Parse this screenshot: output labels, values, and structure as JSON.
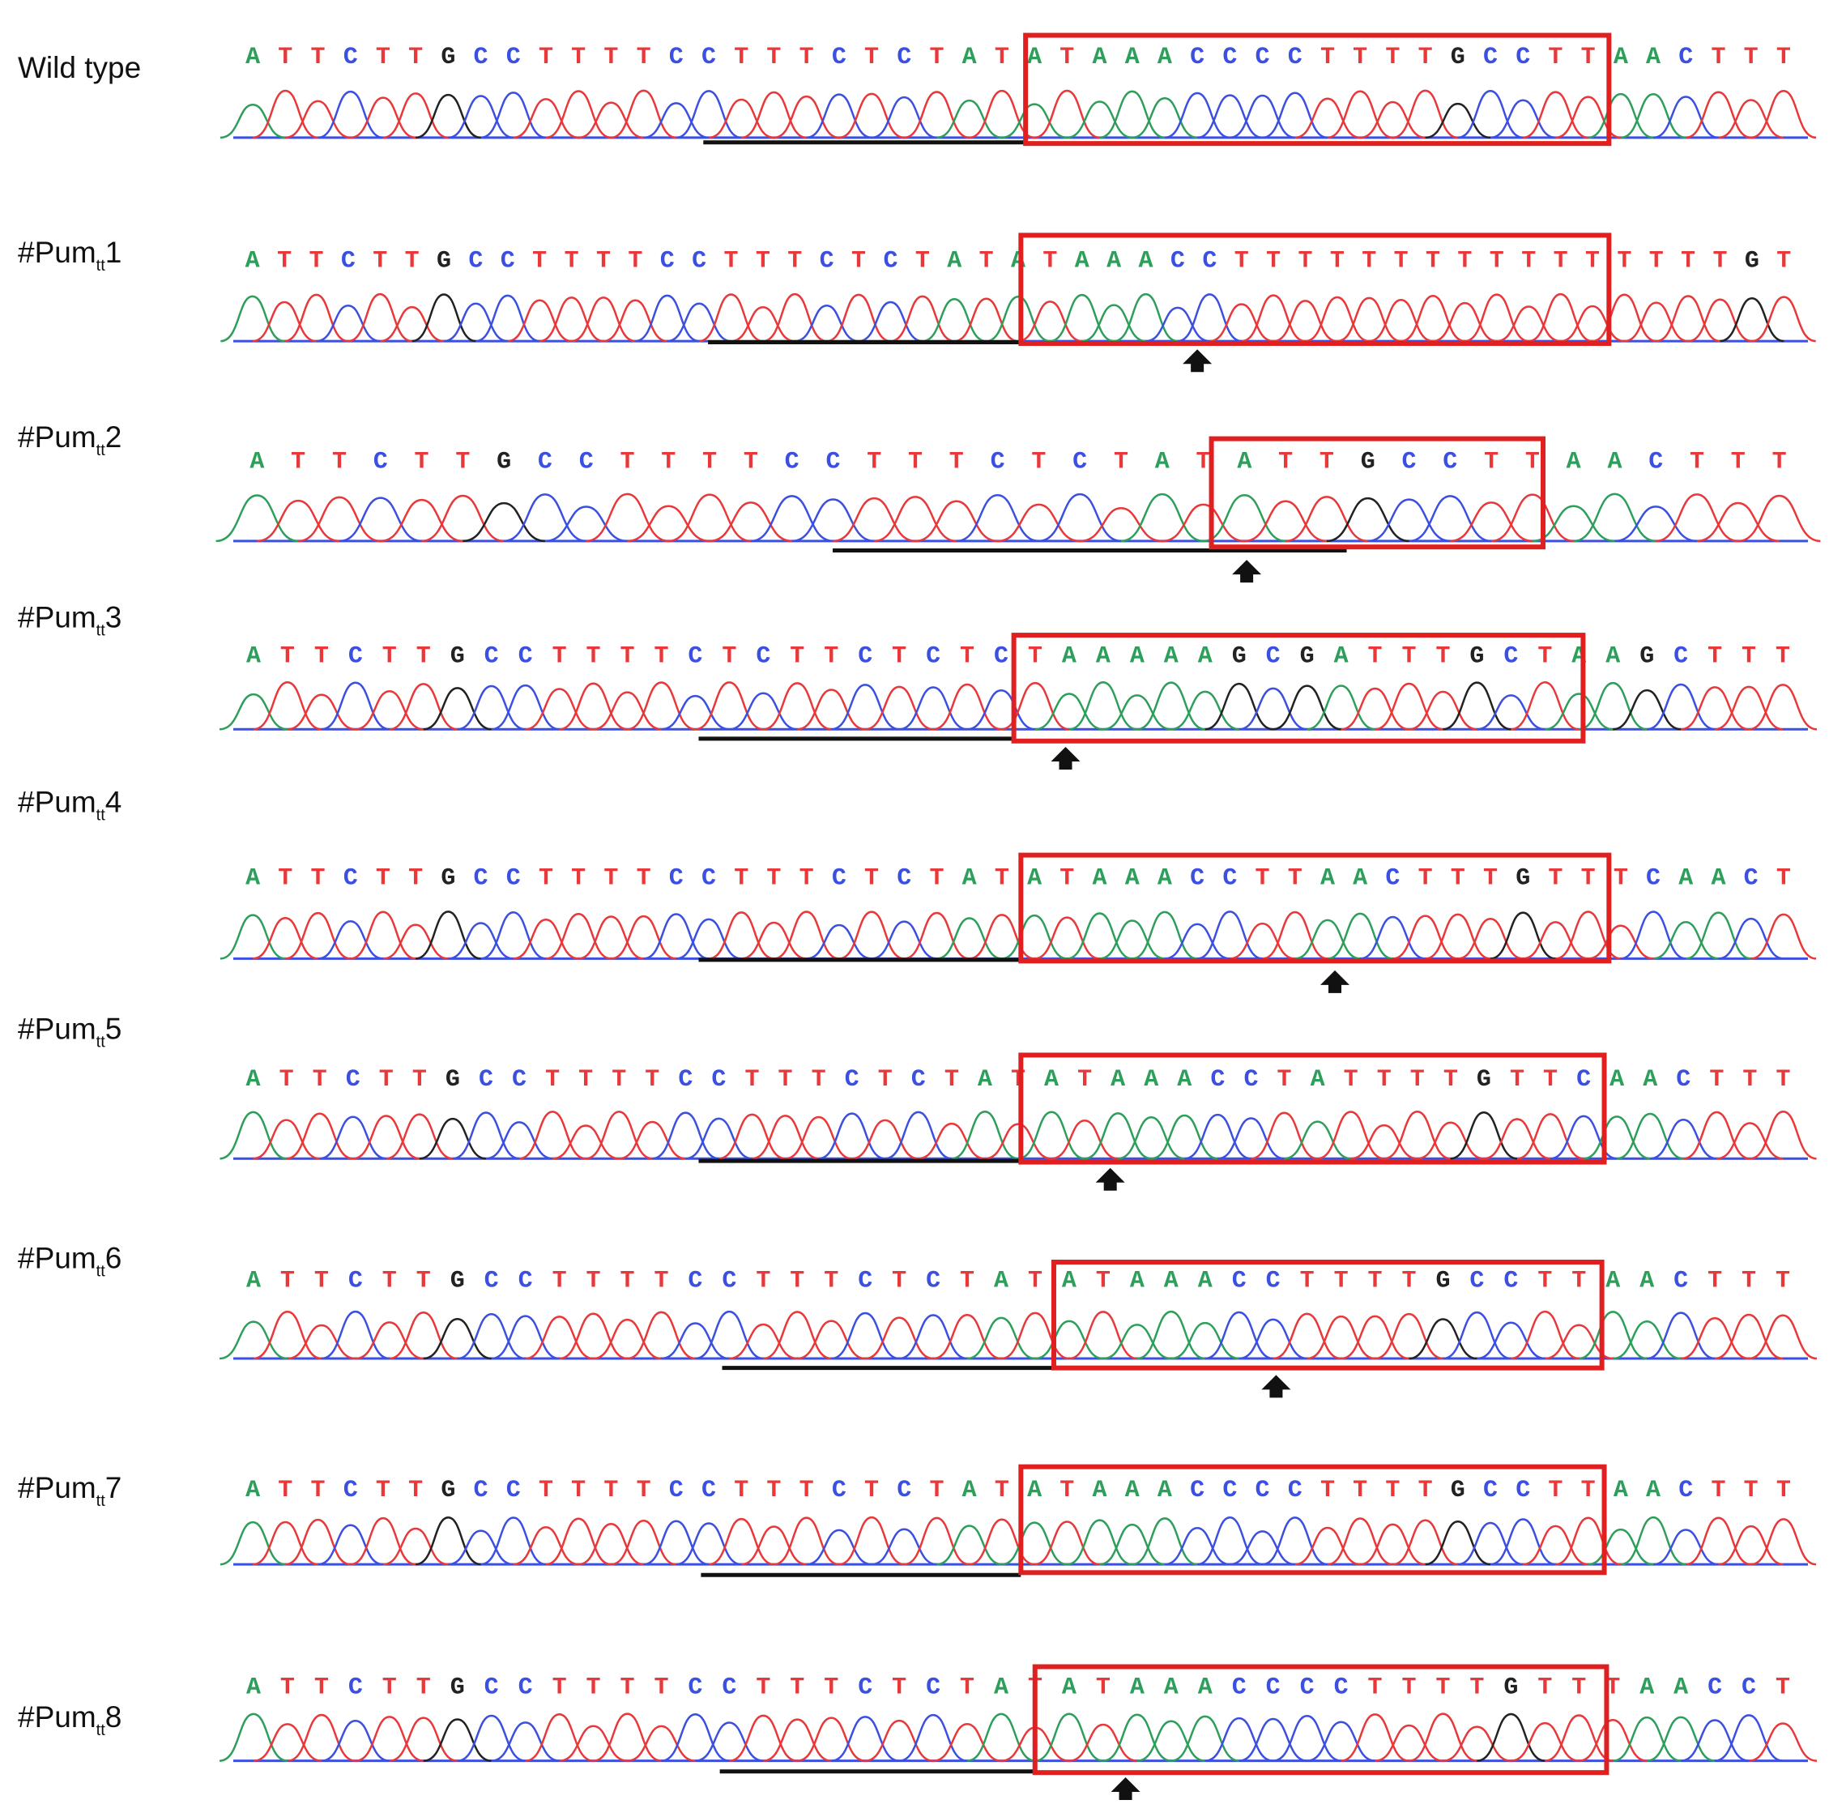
{
  "base_colors": {
    "A": "#2e9e5b",
    "T": "#e8383a",
    "C": "#3b4fe0",
    "G": "#222222"
  },
  "rows": [
    {
      "name": "Wild type",
      "sequence": "ATTCTTGCCTTTTCCTTTCTCTATATAAACCCCTTTTGCCTTAACTTT"
    },
    {
      "name": "#Pum",
      "subscript": "tt",
      "number": "1",
      "sequence": "ATTCTTGCCTTTTCCTTTCTCTATATAAACCTTTTTTTTTTTTTTTTGT"
    },
    {
      "name": "#Pum",
      "subscript": "tt",
      "number": "2",
      "sequence": "ATTCTTGCCTTTTCCTTTCTCTATATTGCCTTAACTTT"
    },
    {
      "name": "#Pum",
      "subscript": "tt",
      "number": "3",
      "sequence": "ATTCTTGCCTTTTCTCTTCTCTCTAAAAAGCGATTTGCTAAGCTTT"
    },
    {
      "name": "#Pum",
      "subscript": "tt",
      "number": "4",
      "sequence": "ATTCTTGCCTTTTCCTTTCTCTATATAAACCTTAACTTTGTTTCAACT"
    },
    {
      "name": "#Pum",
      "subscript": "tt",
      "number": "5",
      "sequence": "ATTCTTGCCTTTTCCTTTCTCTATATAAACCTATTTTGTTCAACTTT"
    },
    {
      "name": "#Pum",
      "subscript": "tt",
      "number": "6",
      "sequence": "ATTCTTGCCTTTTCCTTTCTCTATATAAACCTTTTGCCTTAACTTT"
    },
    {
      "name": "#Pum",
      "subscript": "tt",
      "number": "7",
      "sequence": "ATTCTTGCCTTTTCCTTTCTCTATATAAACCCCTTTTGCCTTAACTTT"
    },
    {
      "name": "#Pum",
      "subscript": "tt",
      "number": "8",
      "sequence": "ATTCTTGCCTTTTCCTTTCTCTATATAAACCCCTTTTGTTTAACCT"
    }
  ]
}
